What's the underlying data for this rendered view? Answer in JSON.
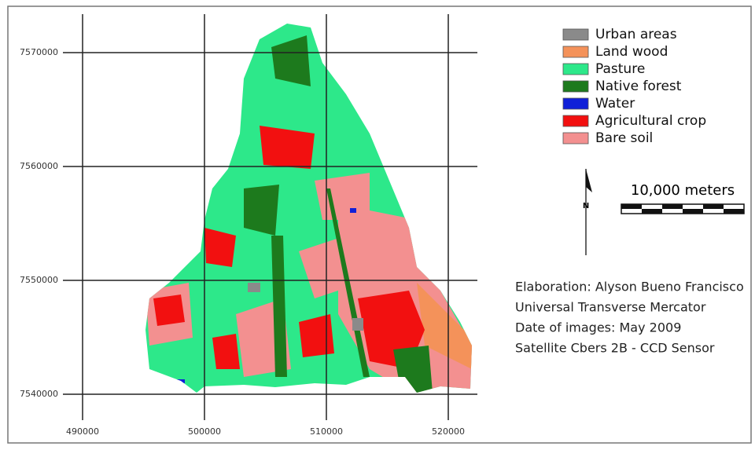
{
  "legend": [
    {
      "label": "Urban areas",
      "color": "#8a8a8a"
    },
    {
      "label": "Land wood",
      "color": "#f4925a"
    },
    {
      "label": "Pasture",
      "color": "#2de88a"
    },
    {
      "label": "Native forest",
      "color": "#1d7a1d"
    },
    {
      "label": "Water",
      "color": "#1020d8"
    },
    {
      "label": "Agricultural crop",
      "color": "#f21010"
    },
    {
      "label": "Bare soil",
      "color": "#f39090"
    }
  ],
  "north_arrow": {
    "label": "N"
  },
  "scale_bar": {
    "label": "10,000 meters"
  },
  "credits": [
    "Elaboration: Alyson Bueno Francisco",
    "Universal Transverse Mercator",
    "Date of images: May 2009",
    "Satellite Cbers 2B - CCD Sensor"
  ],
  "axes": {
    "x_ticks": [
      490000,
      500000,
      510000,
      520000
    ],
    "y_ticks": [
      7540000,
      7550000,
      7560000,
      7570000
    ]
  }
}
